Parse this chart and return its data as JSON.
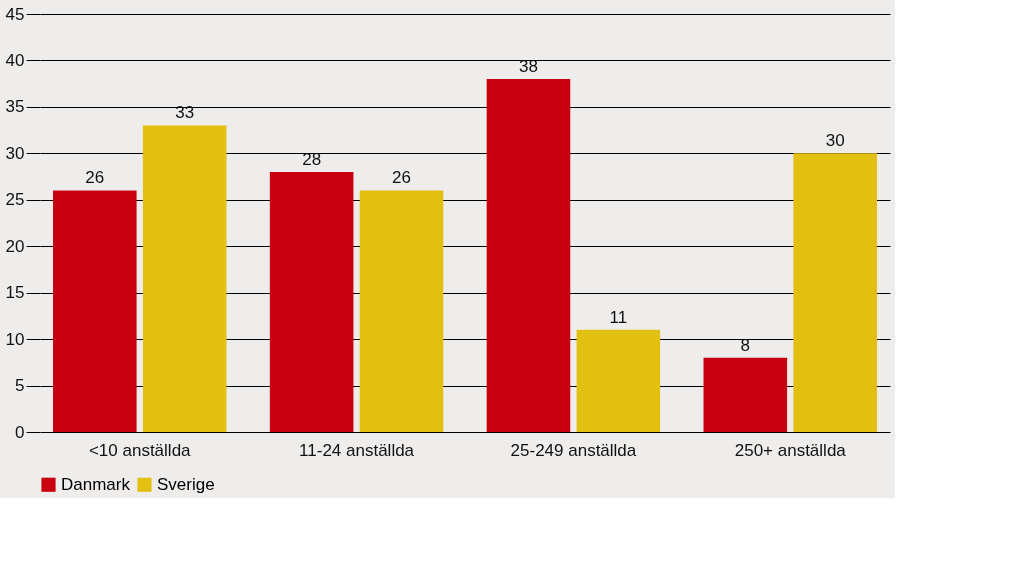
{
  "chart_data": {
    "type": "bar",
    "categories": [
      "<10 anställda",
      "11-24 anställda",
      "25-249 anställda",
      "250+ anställda"
    ],
    "series": [
      {
        "name": "Danmark",
        "color": "#c8000f",
        "values": [
          26,
          28,
          38,
          8
        ]
      },
      {
        "name": "Sverige",
        "color": "#e2c012",
        "values": [
          33,
          26,
          11,
          30
        ]
      }
    ],
    "ylim": [
      0,
      45
    ],
    "yticks": [
      0,
      5,
      10,
      15,
      20,
      25,
      30,
      35,
      40,
      45
    ],
    "grid": "y",
    "legend": "bottom",
    "data_labels": true
  }
}
